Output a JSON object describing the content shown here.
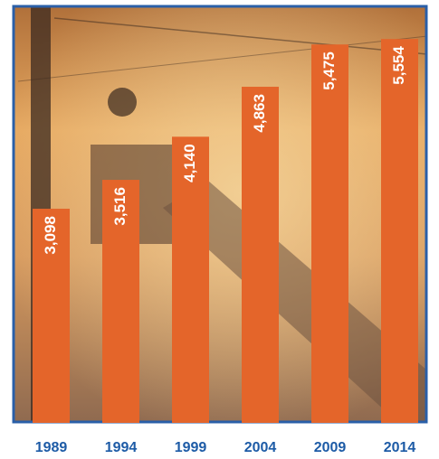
{
  "chart_data": {
    "type": "bar",
    "categories": [
      "1989",
      "1994",
      "1999",
      "2004",
      "2009",
      "2014"
    ],
    "values": [
      3098,
      3516,
      4140,
      4863,
      5475,
      5554
    ],
    "value_labels": [
      "3,098",
      "3,516",
      "4,140",
      "4,863",
      "5,475",
      "5,554"
    ],
    "color": "#e4652a",
    "ylim": [
      0,
      6040
    ]
  }
}
